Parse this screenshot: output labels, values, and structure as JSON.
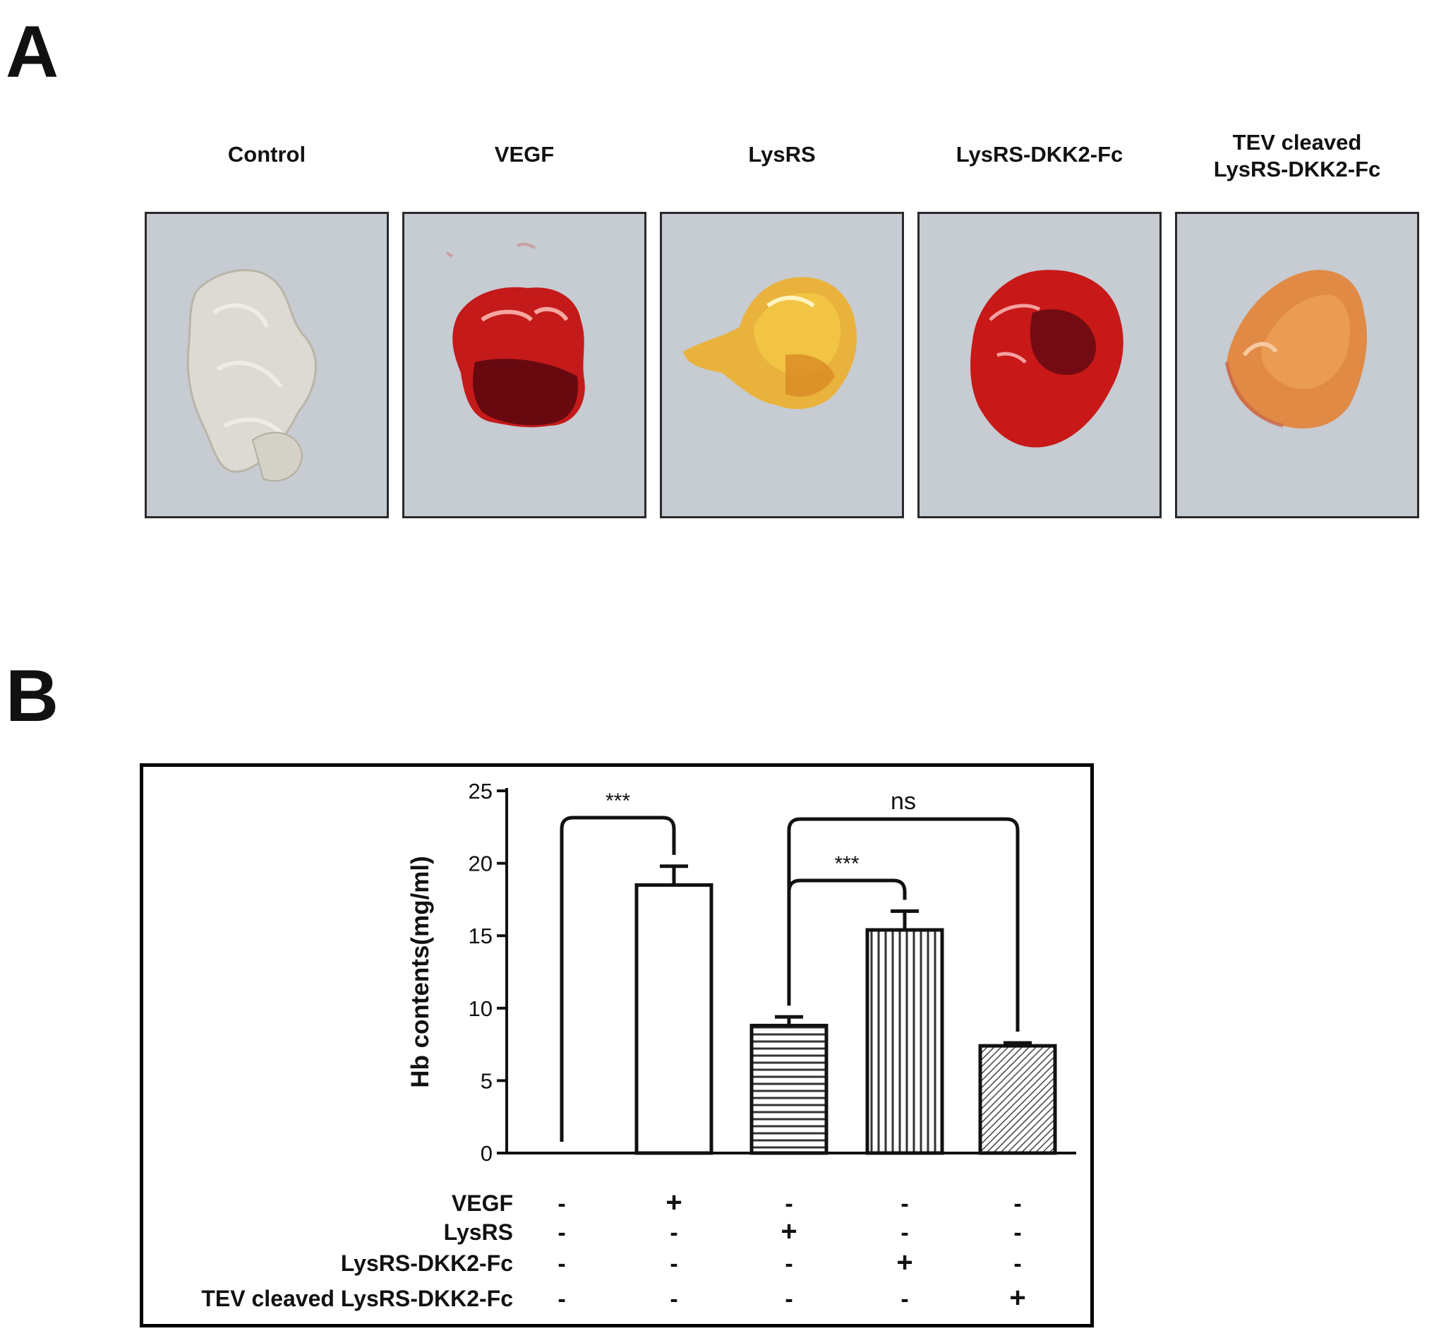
{
  "panels": {
    "a_letter": "A",
    "b_letter": "B"
  },
  "photos": [
    {
      "label": "Control",
      "tissue": "clear-gel"
    },
    {
      "label": "VEGF",
      "tissue": "dark-red"
    },
    {
      "label": "LysRS",
      "tissue": "yellow-orange"
    },
    {
      "label": "LysRS-DKK2-Fc",
      "tissue": "red"
    },
    {
      "label": "TEV cleaved\nLysRS-DKK2-Fc",
      "tissue": "light-orange"
    }
  ],
  "colors": {
    "frame": "#000000",
    "bar_fill": "#ffffff",
    "bar_stroke": "#111111",
    "photo_background": "#c7cbd2"
  },
  "chart_data": {
    "type": "bar",
    "ylabel": "Hb contents(mg/ml)",
    "ylim": [
      0,
      25
    ],
    "yticks": [
      0,
      5,
      10,
      15,
      20,
      25
    ],
    "categories": [
      "Control",
      "VEGF",
      "LysRS",
      "LysRS-DKK2-Fc",
      "TEV cleaved LysRS-DKK2-Fc"
    ],
    "values": [
      0,
      18.5,
      8.8,
      15.4,
      7.4
    ],
    "errors": [
      0,
      1.3,
      0.6,
      1.3,
      0.2
    ],
    "patterns": [
      "open",
      "open",
      "horizontal-lines",
      "vertical-lines",
      "diagonal-hatch"
    ],
    "significance": [
      {
        "from": 0,
        "to": 1,
        "label": "***"
      },
      {
        "from": 2,
        "to": 3,
        "label": "***"
      },
      {
        "from": 2,
        "to": 4,
        "label": "ns"
      }
    ],
    "treatment_table": {
      "rows": [
        {
          "label": "VEGF",
          "signs": [
            "-",
            "+",
            "-",
            "-",
            "-"
          ]
        },
        {
          "label": "LysRS",
          "signs": [
            "-",
            "-",
            "+",
            "-",
            "-"
          ]
        },
        {
          "label": "LysRS-DKK2-Fc",
          "signs": [
            "-",
            "-",
            "-",
            "+",
            "-"
          ]
        },
        {
          "label": "TEV cleaved LysRS-DKK2-Fc",
          "signs": [
            "-",
            "-",
            "-",
            "-",
            "+"
          ]
        }
      ]
    }
  }
}
